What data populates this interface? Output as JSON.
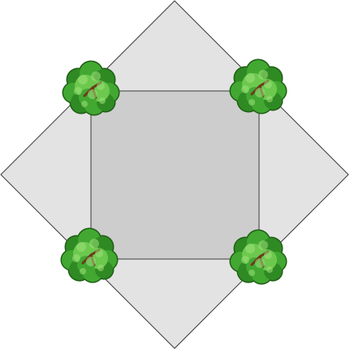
{
  "scene": {
    "type": "isometric-tile",
    "object": "plaza-with-corner-trees",
    "colors": {
      "background": "#ffffff",
      "outer_diamond_fill": "#e3e3e3",
      "outer_diamond_stroke": "#3a3a3a",
      "inner_square_fill": "#cdcdcd",
      "inner_square_stroke": "#3a3a3a",
      "tree_outline": "#1e5e14",
      "tree_dark": "#2f8a23",
      "tree_mid": "#42a832",
      "tree_light": "#6cc94e",
      "tree_highlight": "#9ee07a",
      "trunk": "#6b3a1e"
    },
    "trees": [
      {
        "corner": "top-left",
        "icon": "tree-icon"
      },
      {
        "corner": "top-right",
        "icon": "tree-icon"
      },
      {
        "corner": "bottom-left",
        "icon": "tree-icon"
      },
      {
        "corner": "bottom-right",
        "icon": "tree-icon"
      }
    ]
  }
}
